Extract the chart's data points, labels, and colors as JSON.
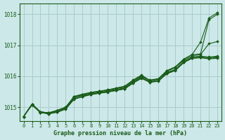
{
  "xlabel": "Graphe pression niveau de la mer (hPa)",
  "bg_color": "#cce8e8",
  "grid_color": "#aacccc",
  "line_color": "#1a5c1a",
  "text_color": "#1a5c1a",
  "ylim": [
    1014.55,
    1018.35
  ],
  "xlim": [
    -0.5,
    23.5
  ],
  "yticks": [
    1015,
    1016,
    1017,
    1018
  ],
  "xticks": [
    0,
    1,
    2,
    3,
    4,
    5,
    6,
    7,
    8,
    9,
    10,
    11,
    12,
    13,
    14,
    15,
    16,
    17,
    18,
    19,
    20,
    21,
    22,
    23
  ],
  "series": [
    [
      1014.7,
      1015.1,
      1014.85,
      1014.82,
      1014.88,
      1014.98,
      1015.32,
      1015.38,
      1015.43,
      1015.48,
      1015.52,
      1015.58,
      1015.62,
      1015.82,
      1015.98,
      1015.88,
      1015.92,
      1016.12,
      1016.22,
      1016.48,
      1016.62,
      1016.65,
      1016.62,
      1016.65
    ],
    [
      1014.7,
      1015.08,
      1014.83,
      1014.8,
      1014.85,
      1014.95,
      1015.28,
      1015.35,
      1015.42,
      1015.46,
      1015.5,
      1015.55,
      1015.6,
      1015.8,
      1015.95,
      1015.82,
      1015.86,
      1016.1,
      1016.2,
      1016.45,
      1016.6,
      1016.62,
      1016.6,
      1016.62
    ],
    [
      1014.7,
      1015.08,
      1014.83,
      1014.79,
      1014.84,
      1014.94,
      1015.26,
      1015.34,
      1015.41,
      1015.45,
      1015.49,
      1015.54,
      1015.59,
      1015.78,
      1015.93,
      1015.8,
      1015.84,
      1016.08,
      1016.18,
      1016.44,
      1016.58,
      1016.6,
      1016.56,
      1016.58
    ],
    [
      1014.7,
      1015.08,
      1014.83,
      1014.79,
      1014.85,
      1014.95,
      1015.27,
      1015.35,
      1015.42,
      1015.46,
      1015.5,
      1015.55,
      1015.6,
      1015.79,
      1015.95,
      1015.82,
      1015.86,
      1016.1,
      1016.2,
      1016.45,
      1016.58,
      1016.6,
      1016.58,
      1016.6
    ],
    [
      1014.7,
      1015.1,
      1014.85,
      1014.82,
      1014.9,
      1015.0,
      1015.32,
      1015.4,
      1015.46,
      1015.5,
      1015.55,
      1015.6,
      1015.65,
      1015.85,
      1016.0,
      1015.85,
      1015.9,
      1016.15,
      1016.28,
      1016.52,
      1016.65,
      1016.7,
      1017.05,
      1017.12
    ],
    [
      1014.7,
      1015.1,
      1014.85,
      1014.82,
      1014.9,
      1015.0,
      1015.35,
      1015.42,
      1015.48,
      1015.52,
      1015.56,
      1015.62,
      1015.67,
      1015.87,
      1016.02,
      1015.86,
      1015.92,
      1016.18,
      1016.3,
      1016.55,
      1016.7,
      1016.72,
      1017.82,
      1018.0
    ],
    [
      1014.7,
      1015.1,
      1014.85,
      1014.82,
      1014.9,
      1015.0,
      1015.35,
      1015.42,
      1015.48,
      1015.52,
      1015.56,
      1015.62,
      1015.68,
      1015.88,
      1016.04,
      1015.86,
      1015.92,
      1016.18,
      1016.3,
      1016.55,
      1016.7,
      1017.1,
      1017.88,
      1018.05
    ]
  ]
}
